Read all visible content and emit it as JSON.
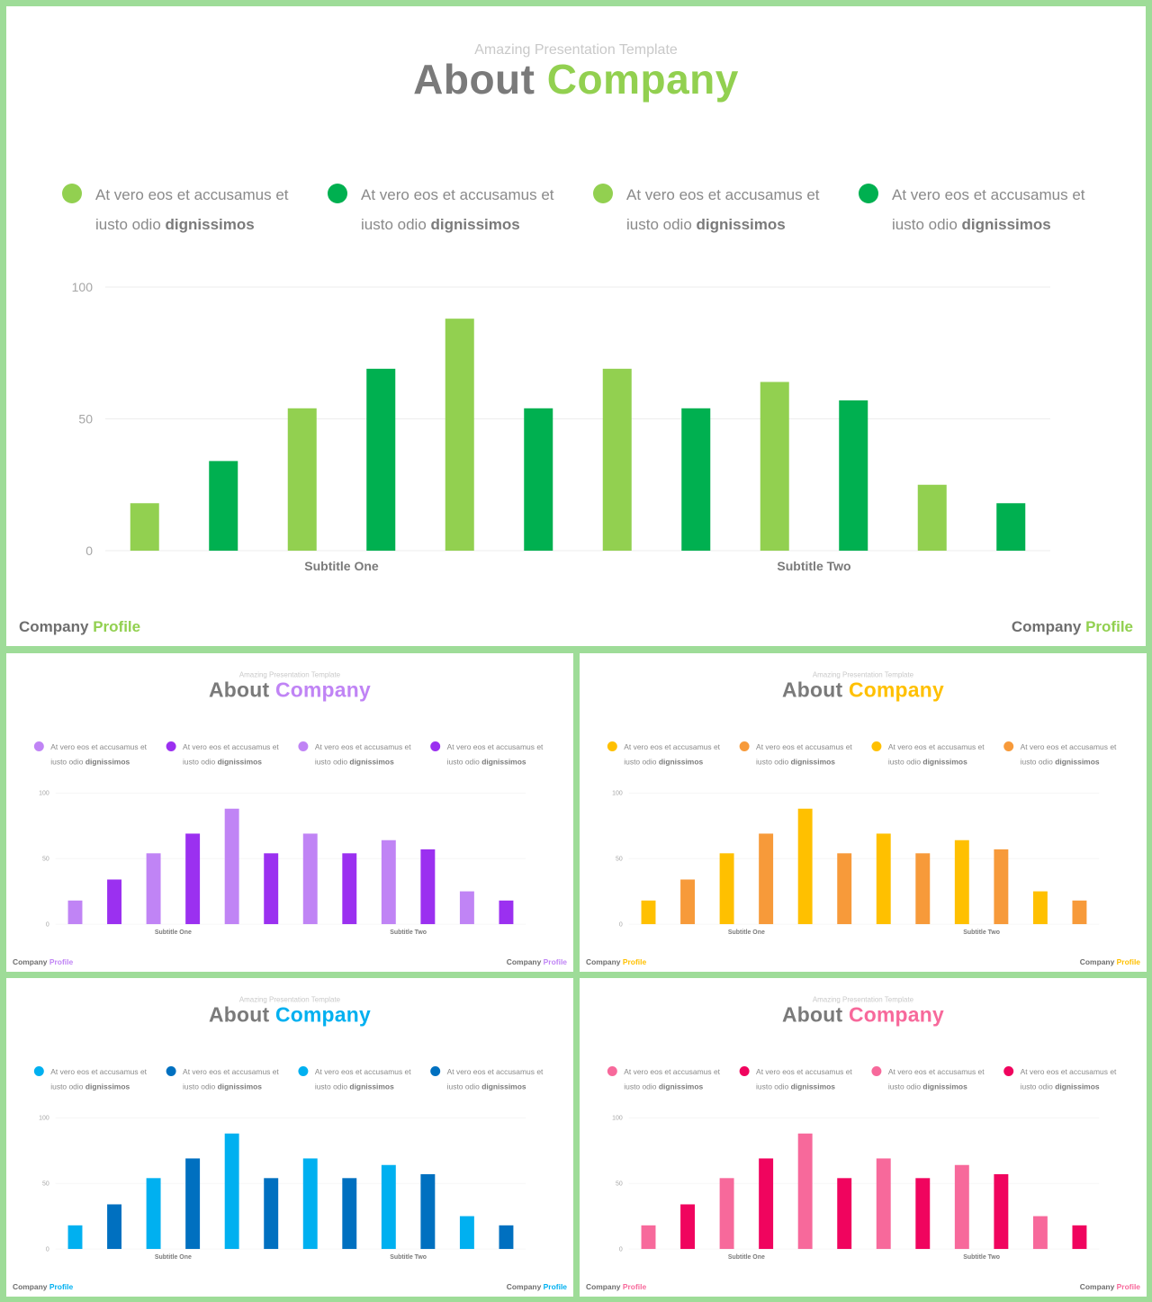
{
  "slides": [
    {
      "id": "green",
      "subtitle": "Amazing Presentation Template",
      "title_part1": "About",
      "title_part2": "Company",
      "legend": [
        {
          "line1": "At vero eos et accusamus et",
          "line2a": "iusto odio",
          "line2b": "dignissimos"
        },
        {
          "line1": "At vero eos et accusamus et",
          "line2a": "iusto odio",
          "line2b": "dignissimos"
        },
        {
          "line1": "At vero eos et accusamus et",
          "line2a": "iusto odio",
          "line2b": "dignissimos"
        },
        {
          "line1": "At vero eos et accusamus et",
          "line2a": "iusto odio",
          "line2b": "dignissimos"
        }
      ],
      "footer_left_part1": "Company",
      "footer_left_part2": "Profile",
      "footer_right_part1": "Company",
      "footer_right_part2": "Profile",
      "colors": {
        "light": "#92d050",
        "dark": "#00b050"
      }
    },
    {
      "id": "purple",
      "subtitle": "Amazing Presentation Template",
      "title_part1": "About",
      "title_part2": "Company",
      "legend": [
        {
          "line1": "At vero eos et accusamus et",
          "line2a": "iusto odio",
          "line2b": "dignissimos"
        },
        {
          "line1": "At vero eos et accusamus et",
          "line2a": "iusto odio",
          "line2b": "dignissimos"
        },
        {
          "line1": "At vero eos et accusamus et",
          "line2a": "iusto odio",
          "line2b": "dignissimos"
        },
        {
          "line1": "At vero eos et accusamus et",
          "line2a": "iusto odio",
          "line2b": "dignissimos"
        }
      ],
      "footer_left_part1": "Company",
      "footer_left_part2": "Profile",
      "footer_right_part1": "Company",
      "footer_right_part2": "Profile",
      "colors": {
        "light": "#c084f5",
        "dark": "#9b30f0"
      }
    },
    {
      "id": "yellow",
      "subtitle": "Amazing Presentation Template",
      "title_part1": "About",
      "title_part2": "Company",
      "legend": [
        {
          "line1": "At vero eos et accusamus et",
          "line2a": "iusto odio",
          "line2b": "dignissimos"
        },
        {
          "line1": "At vero eos et accusamus et",
          "line2a": "iusto odio",
          "line2b": "dignissimos"
        },
        {
          "line1": "At vero eos et accusamus et",
          "line2a": "iusto odio",
          "line2b": "dignissimos"
        },
        {
          "line1": "At vero eos et accusamus et",
          "line2a": "iusto odio",
          "line2b": "dignissimos"
        }
      ],
      "footer_left_part1": "Company",
      "footer_left_part2": "Profile",
      "footer_right_part1": "Company",
      "footer_right_part2": "Profile",
      "colors": {
        "light": "#ffc000",
        "dark": "#f79a3a"
      }
    },
    {
      "id": "blue",
      "subtitle": "Amazing Presentation Template",
      "title_part1": "About",
      "title_part2": "Company",
      "legend": [
        {
          "line1": "At vero eos et accusamus et",
          "line2a": "iusto odio",
          "line2b": "dignissimos"
        },
        {
          "line1": "At vero eos et accusamus et",
          "line2a": "iusto odio",
          "line2b": "dignissimos"
        },
        {
          "line1": "At vero eos et accusamus et",
          "line2a": "iusto odio",
          "line2b": "dignissimos"
        },
        {
          "line1": "At vero eos et accusamus et",
          "line2a": "iusto odio",
          "line2b": "dignissimos"
        }
      ],
      "footer_left_part1": "Company",
      "footer_left_part2": "Profile",
      "footer_right_part1": "Company",
      "footer_right_part2": "Profile",
      "colors": {
        "light": "#00b0f0",
        "dark": "#0070c0"
      }
    },
    {
      "id": "pink",
      "subtitle": "Amazing Presentation Template",
      "title_part1": "About",
      "title_part2": "Company",
      "legend": [
        {
          "line1": "At vero eos et accusamus et",
          "line2a": "iusto odio",
          "line2b": "dignissimos"
        },
        {
          "line1": "At vero eos et accusamus et",
          "line2a": "iusto odio",
          "line2b": "dignissimos"
        },
        {
          "line1": "At vero eos et accusamus et",
          "line2a": "iusto odio",
          "line2b": "dignissimos"
        },
        {
          "line1": "At vero eos et accusamus et",
          "line2a": "iusto odio",
          "line2b": "dignissimos"
        }
      ],
      "footer_left_part1": "Company",
      "footer_left_part2": "Profile",
      "footer_right_part1": "Company",
      "footer_right_part2": "Profile",
      "colors": {
        "light": "#f7699b",
        "dark": "#f0045e"
      }
    }
  ],
  "chart_data": {
    "type": "bar",
    "values": [
      18,
      34,
      54,
      69,
      88,
      54,
      69,
      54,
      64,
      57,
      25,
      18
    ],
    "bar_shades": [
      "light",
      "dark",
      "light",
      "dark",
      "light",
      "dark",
      "light",
      "dark",
      "light",
      "dark",
      "light",
      "dark"
    ],
    "group_labels": [
      "Subtitle One",
      "Subtitle Two"
    ],
    "ylim": [
      0,
      100
    ],
    "yticks": [
      "0",
      "50",
      "100"
    ],
    "grid": true
  }
}
